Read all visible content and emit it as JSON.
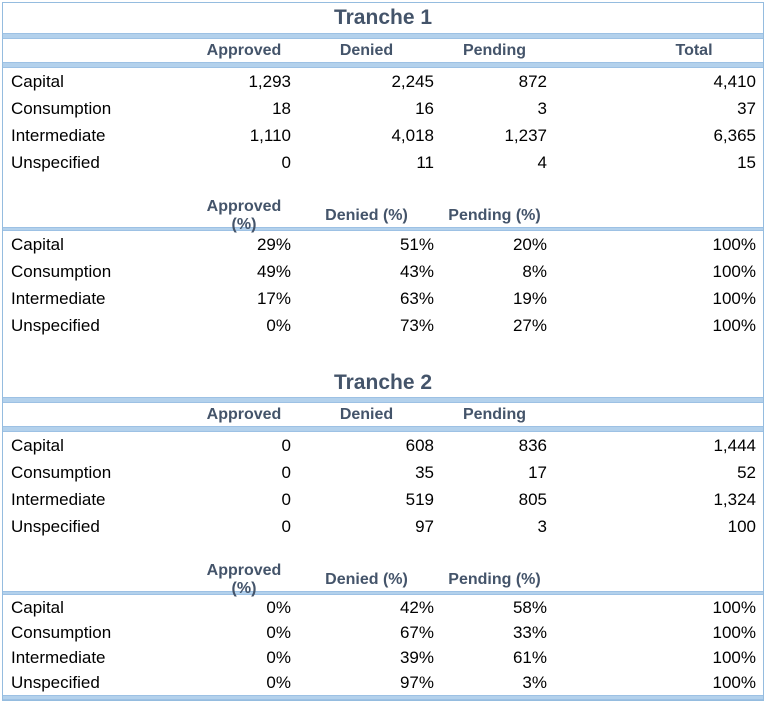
{
  "colors": {
    "header_text": "#44546A",
    "band_blue": "#B3D1EC",
    "border_blue": "#95BCDF",
    "body_text": "#000000",
    "background": "#FFFFFF"
  },
  "tranche1": {
    "title": "Tranche 1",
    "count_headers": {
      "approved": "Approved",
      "denied": "Denied",
      "pending": "Pending",
      "total": "Total"
    },
    "count_rows": [
      {
        "label": "Capital",
        "approved": "1,293",
        "denied": "2,245",
        "pending": "872",
        "total": "4,410"
      },
      {
        "label": "Consumption",
        "approved": "18",
        "denied": "16",
        "pending": "3",
        "total": "37"
      },
      {
        "label": "Intermediate",
        "approved": "1,110",
        "denied": "4,018",
        "pending": "1,237",
        "total": "6,365"
      },
      {
        "label": "Unspecified",
        "approved": "0",
        "denied": "11",
        "pending": "4",
        "total": "15"
      }
    ],
    "pct_headers": {
      "approved": "Approved (%)",
      "denied": "Denied (%)",
      "pending": "Pending (%)",
      "total": ""
    },
    "pct_rows": [
      {
        "label": "Capital",
        "approved": "29%",
        "denied": "51%",
        "pending": "20%",
        "total": "100%"
      },
      {
        "label": "Consumption",
        "approved": "49%",
        "denied": "43%",
        "pending": "8%",
        "total": "100%"
      },
      {
        "label": "Intermediate",
        "approved": "17%",
        "denied": "63%",
        "pending": "19%",
        "total": "100%"
      },
      {
        "label": "Unspecified",
        "approved": "0%",
        "denied": "73%",
        "pending": "27%",
        "total": "100%"
      }
    ]
  },
  "tranche2": {
    "title": "Tranche 2",
    "count_headers": {
      "approved": "Approved",
      "denied": "Denied",
      "pending": "Pending",
      "total": ""
    },
    "count_rows": [
      {
        "label": "Capital",
        "approved": "0",
        "denied": "608",
        "pending": "836",
        "total": "1,444"
      },
      {
        "label": "Consumption",
        "approved": "0",
        "denied": "35",
        "pending": "17",
        "total": "52"
      },
      {
        "label": "Intermediate",
        "approved": "0",
        "denied": "519",
        "pending": "805",
        "total": "1,324"
      },
      {
        "label": "Unspecified",
        "approved": "0",
        "denied": "97",
        "pending": "3",
        "total": "100"
      }
    ],
    "pct_headers": {
      "approved": "Approved (%)",
      "denied": "Denied (%)",
      "pending": "Pending (%)",
      "total": ""
    },
    "pct_rows": [
      {
        "label": "Capital",
        "approved": "0%",
        "denied": "42%",
        "pending": "58%",
        "total": "100%"
      },
      {
        "label": "Consumption",
        "approved": "0%",
        "denied": "67%",
        "pending": "33%",
        "total": "100%"
      },
      {
        "label": "Intermediate",
        "approved": "0%",
        "denied": "39%",
        "pending": "61%",
        "total": "100%"
      },
      {
        "label": "Unspecified",
        "approved": "0%",
        "denied": "97%",
        "pending": "3%",
        "total": "100%"
      }
    ]
  }
}
